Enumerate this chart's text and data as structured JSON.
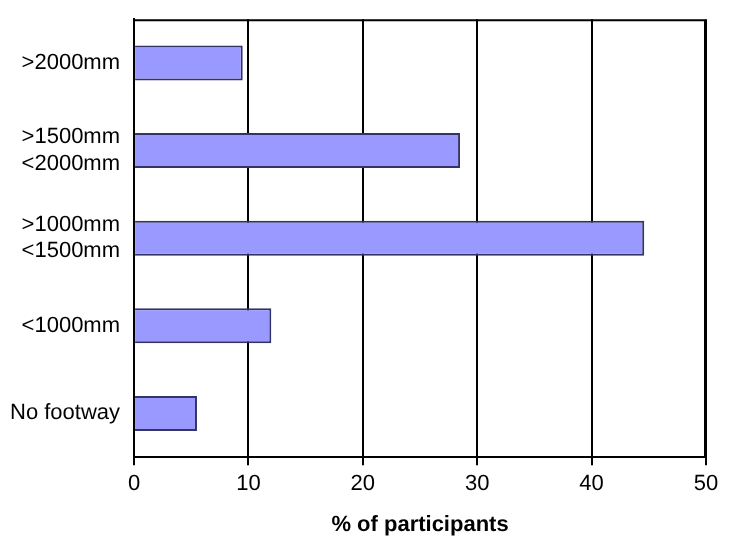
{
  "chart_data": {
    "type": "bar",
    "orientation": "horizontal",
    "xlabel": "% of participants",
    "categories": [
      ">2000mm",
      ">1500mm\n<2000mm",
      ">1000mm\n<1500mm",
      "<1000mm",
      "No footway"
    ],
    "values": [
      9.5,
      28.5,
      44.6,
      12.0,
      5.5
    ],
    "color": "#9999ff",
    "xlim": [
      0,
      50
    ],
    "xticks": [
      0,
      10,
      20,
      30,
      40,
      50
    ],
    "grid": "x",
    "legend": false
  }
}
